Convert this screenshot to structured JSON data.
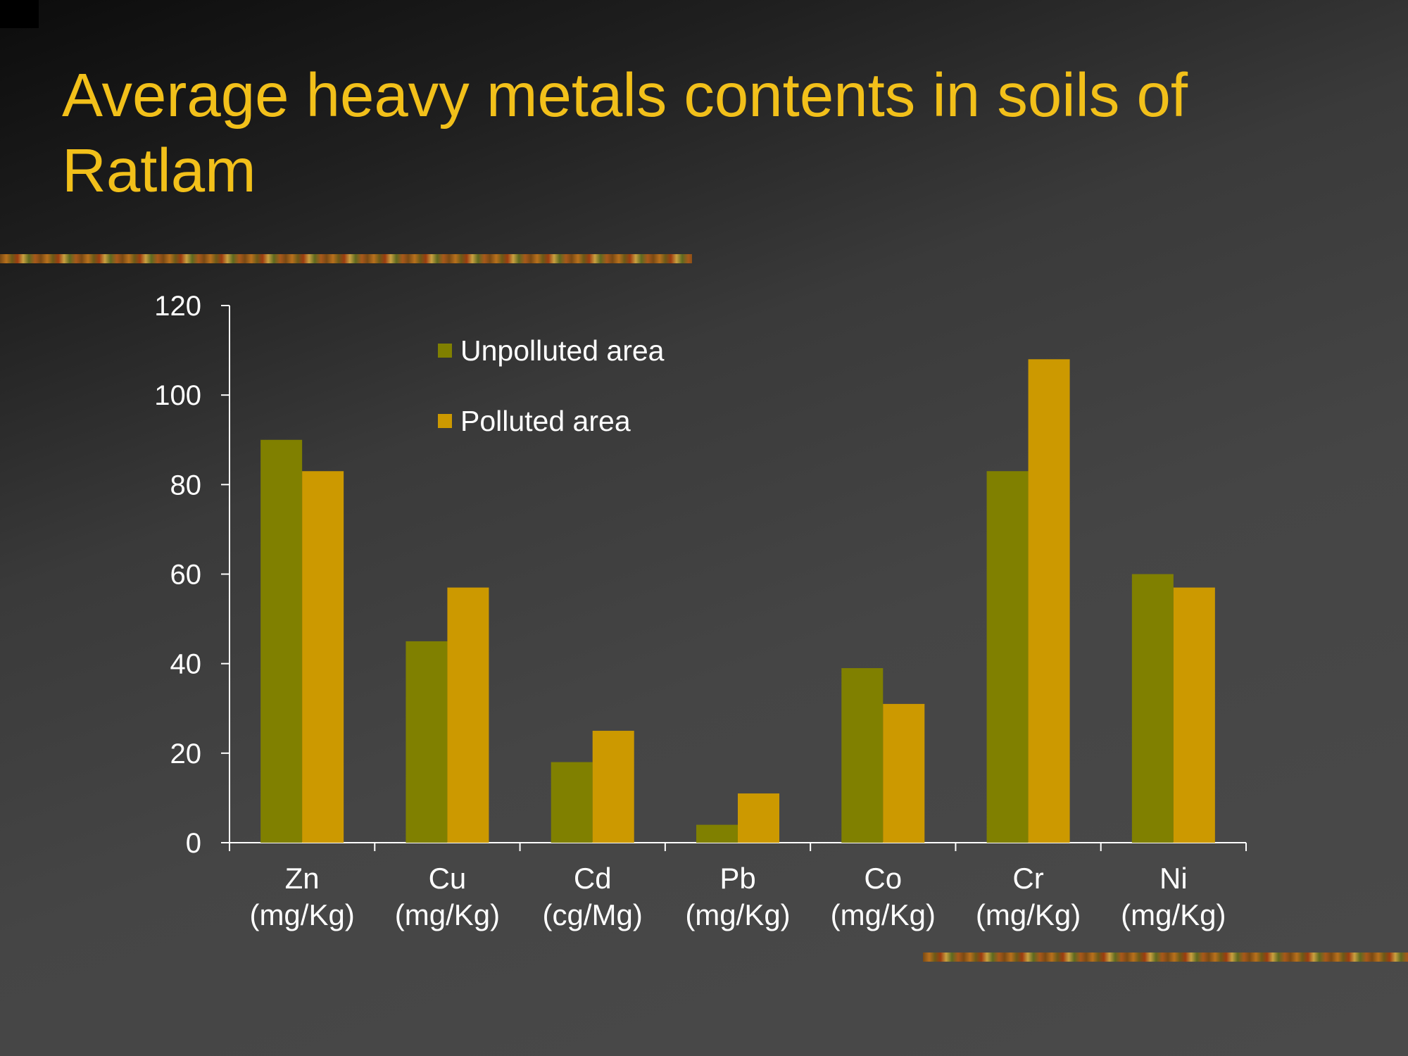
{
  "slide": {
    "title": "Average heavy metals contents in soils of Ratlam"
  },
  "colors": {
    "title": "#f2c01a",
    "unpolluted": "#808000",
    "polluted": "#cc9900",
    "axis": "#ffffff"
  },
  "chart_data": {
    "type": "bar",
    "title": "",
    "xlabel": "",
    "ylabel": "",
    "ylim": [
      0,
      120
    ],
    "yticks": [
      "0",
      "20",
      "40",
      "60",
      "80",
      "100",
      "120"
    ],
    "categories": [
      [
        "Zn",
        "(mg/Kg)"
      ],
      [
        "Cu",
        "(mg/Kg)"
      ],
      [
        "Cd",
        "(cg/Mg)"
      ],
      [
        "Pb",
        "(mg/Kg)"
      ],
      [
        "Co",
        "(mg/Kg)"
      ],
      [
        "Cr",
        "(mg/Kg)"
      ],
      [
        "Ni",
        "(mg/Kg)"
      ]
    ],
    "series": [
      {
        "name": "Unpolluted area",
        "color": "#808000",
        "values": [
          90,
          45,
          18,
          4,
          39,
          83,
          60
        ]
      },
      {
        "name": "Polluted area",
        "color": "#cc9900",
        "values": [
          83,
          57,
          25,
          11,
          31,
          108,
          57
        ]
      }
    ],
    "legend_position": "top-left",
    "grid": false
  }
}
